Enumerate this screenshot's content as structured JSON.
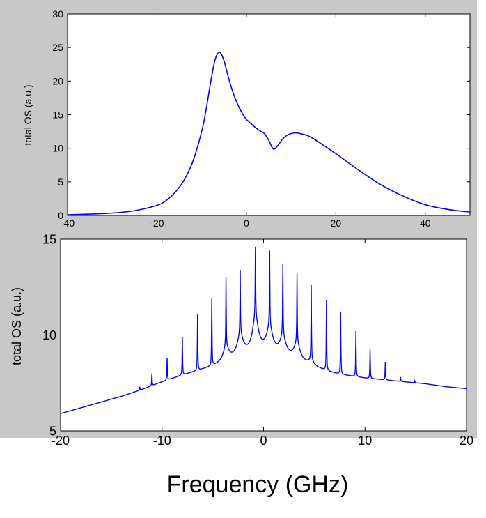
{
  "colors": {
    "figure_bg": "#c8c8c8",
    "axes_bg": "#ffffff",
    "line": "#0000ff",
    "axis": "#000000"
  },
  "caption": "Frequency (GHz)",
  "chart_data": [
    {
      "type": "line",
      "ylabel": "total OS (a.u.)",
      "xlim": [
        -40,
        50
      ],
      "ylim": [
        0,
        30
      ],
      "xticks": [
        -40,
        -20,
        0,
        20,
        40
      ],
      "yticks": [
        0,
        5,
        10,
        15,
        20,
        25,
        30
      ],
      "x": [
        -40,
        -35,
        -30,
        -25,
        -20,
        -18,
        -16,
        -14,
        -12,
        -10,
        -9,
        -8,
        -7,
        -6,
        -5,
        -4,
        -3,
        -2,
        -1,
        0,
        1,
        2,
        3,
        4,
        5,
        6,
        7,
        8,
        9,
        10,
        11,
        12,
        14,
        16,
        18,
        20,
        25,
        30,
        35,
        40,
        45,
        50
      ],
      "y": [
        0.1,
        0.2,
        0.35,
        0.7,
        1.5,
        2.2,
        3.4,
        5.2,
        8.0,
        12.5,
        15.8,
        19.8,
        23.2,
        24.3,
        23.0,
        20.5,
        18.3,
        16.6,
        15.3,
        14.3,
        13.7,
        13.1,
        12.6,
        12.2,
        11.2,
        9.9,
        10.4,
        11.3,
        11.9,
        12.2,
        12.3,
        12.2,
        11.8,
        11.0,
        10.1,
        9.2,
        6.8,
        4.6,
        2.9,
        1.6,
        0.9,
        0.5
      ]
    },
    {
      "type": "line",
      "ylabel": "total OS (a.u.)",
      "xlim": [
        -20,
        20
      ],
      "ylim": [
        5,
        15
      ],
      "xticks": [
        -20,
        -10,
        0,
        10,
        20
      ],
      "yticks": [
        5,
        10,
        15
      ],
      "baseline": {
        "x": [
          -20,
          -18,
          -16,
          -14,
          -12,
          -10,
          -8,
          -6,
          -4,
          -3,
          -2,
          -1,
          0,
          1,
          2,
          3,
          4,
          5,
          6,
          7,
          8,
          10,
          12,
          14,
          16,
          18,
          20
        ],
        "y": [
          5.9,
          6.2,
          6.5,
          6.8,
          7.15,
          7.55,
          7.9,
          8.2,
          8.5,
          8.7,
          8.9,
          9.0,
          9.1,
          9.0,
          8.9,
          8.7,
          8.5,
          8.3,
          8.15,
          8.0,
          7.9,
          7.75,
          7.65,
          7.55,
          7.45,
          7.3,
          7.2
        ]
      },
      "peaks": {
        "x": [
          -12.2,
          -11.0,
          -9.5,
          -8.0,
          -6.5,
          -5.1,
          -3.7,
          -2.3,
          -0.8,
          0.6,
          1.9,
          3.3,
          4.7,
          6.2,
          7.6,
          9.1,
          10.5,
          12.0,
          13.5,
          14.9
        ],
        "y": [
          7.3,
          8.0,
          8.8,
          9.9,
          11.1,
          11.9,
          13.0,
          13.4,
          14.6,
          14.4,
          13.7,
          13.2,
          12.6,
          11.8,
          11.2,
          10.2,
          9.3,
          8.6,
          7.8,
          7.6
        ]
      },
      "humps": {
        "x": [
          -3.7,
          -2.3,
          -0.8,
          0.6,
          1.9,
          3.3,
          4.7
        ],
        "y": [
          9.3,
          9.9,
          10.8,
          10.3,
          9.8,
          9.5,
          8.6
        ]
      }
    }
  ]
}
